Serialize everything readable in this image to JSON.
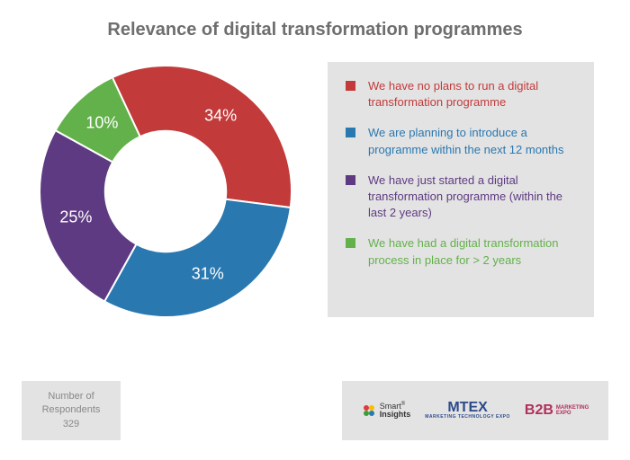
{
  "title": "Relevance of digital transformation programmes",
  "chart": {
    "type": "donut",
    "inner_radius_ratio": 0.48,
    "start_angle_deg": -25,
    "background_color": "#ffffff",
    "slices": [
      {
        "value": 34,
        "label": "34%",
        "color": "#c33a3a",
        "legend": "We have no plans to run a digital transformation programme"
      },
      {
        "value": 31,
        "label": "31%",
        "color": "#2a78b0",
        "legend": "We are planning to introduce a programme within the next 12 months"
      },
      {
        "value": 25,
        "label": "25%",
        "color": "#5e3a82",
        "legend": "We have just started a digital transformation programme (within the last 2 years)"
      },
      {
        "value": 10,
        "label": "10%",
        "color": "#63b14a",
        "legend": "We have had a digital transformation process in place for > 2 years"
      }
    ],
    "label_color": "#ffffff",
    "label_fontsize": 18
  },
  "legend": {
    "background_color": "#e3e3e3",
    "text_fontsize": 13
  },
  "respondents": {
    "label": "Number of Respondents",
    "value": "329",
    "background_color": "#e3e3e3",
    "text_color": "#888888"
  },
  "logos": {
    "background_color": "#e3e3e3",
    "items": [
      {
        "name": "Smart Insights",
        "primary_color": "#333333"
      },
      {
        "name": "MTEX",
        "subtitle": "MARKETING TECHNOLOGY EXPO",
        "primary_color": "#2b4a8a"
      },
      {
        "name": "B2B",
        "subtitle": "MARKETING EXPO",
        "primary_color": "#b0305a"
      }
    ]
  }
}
